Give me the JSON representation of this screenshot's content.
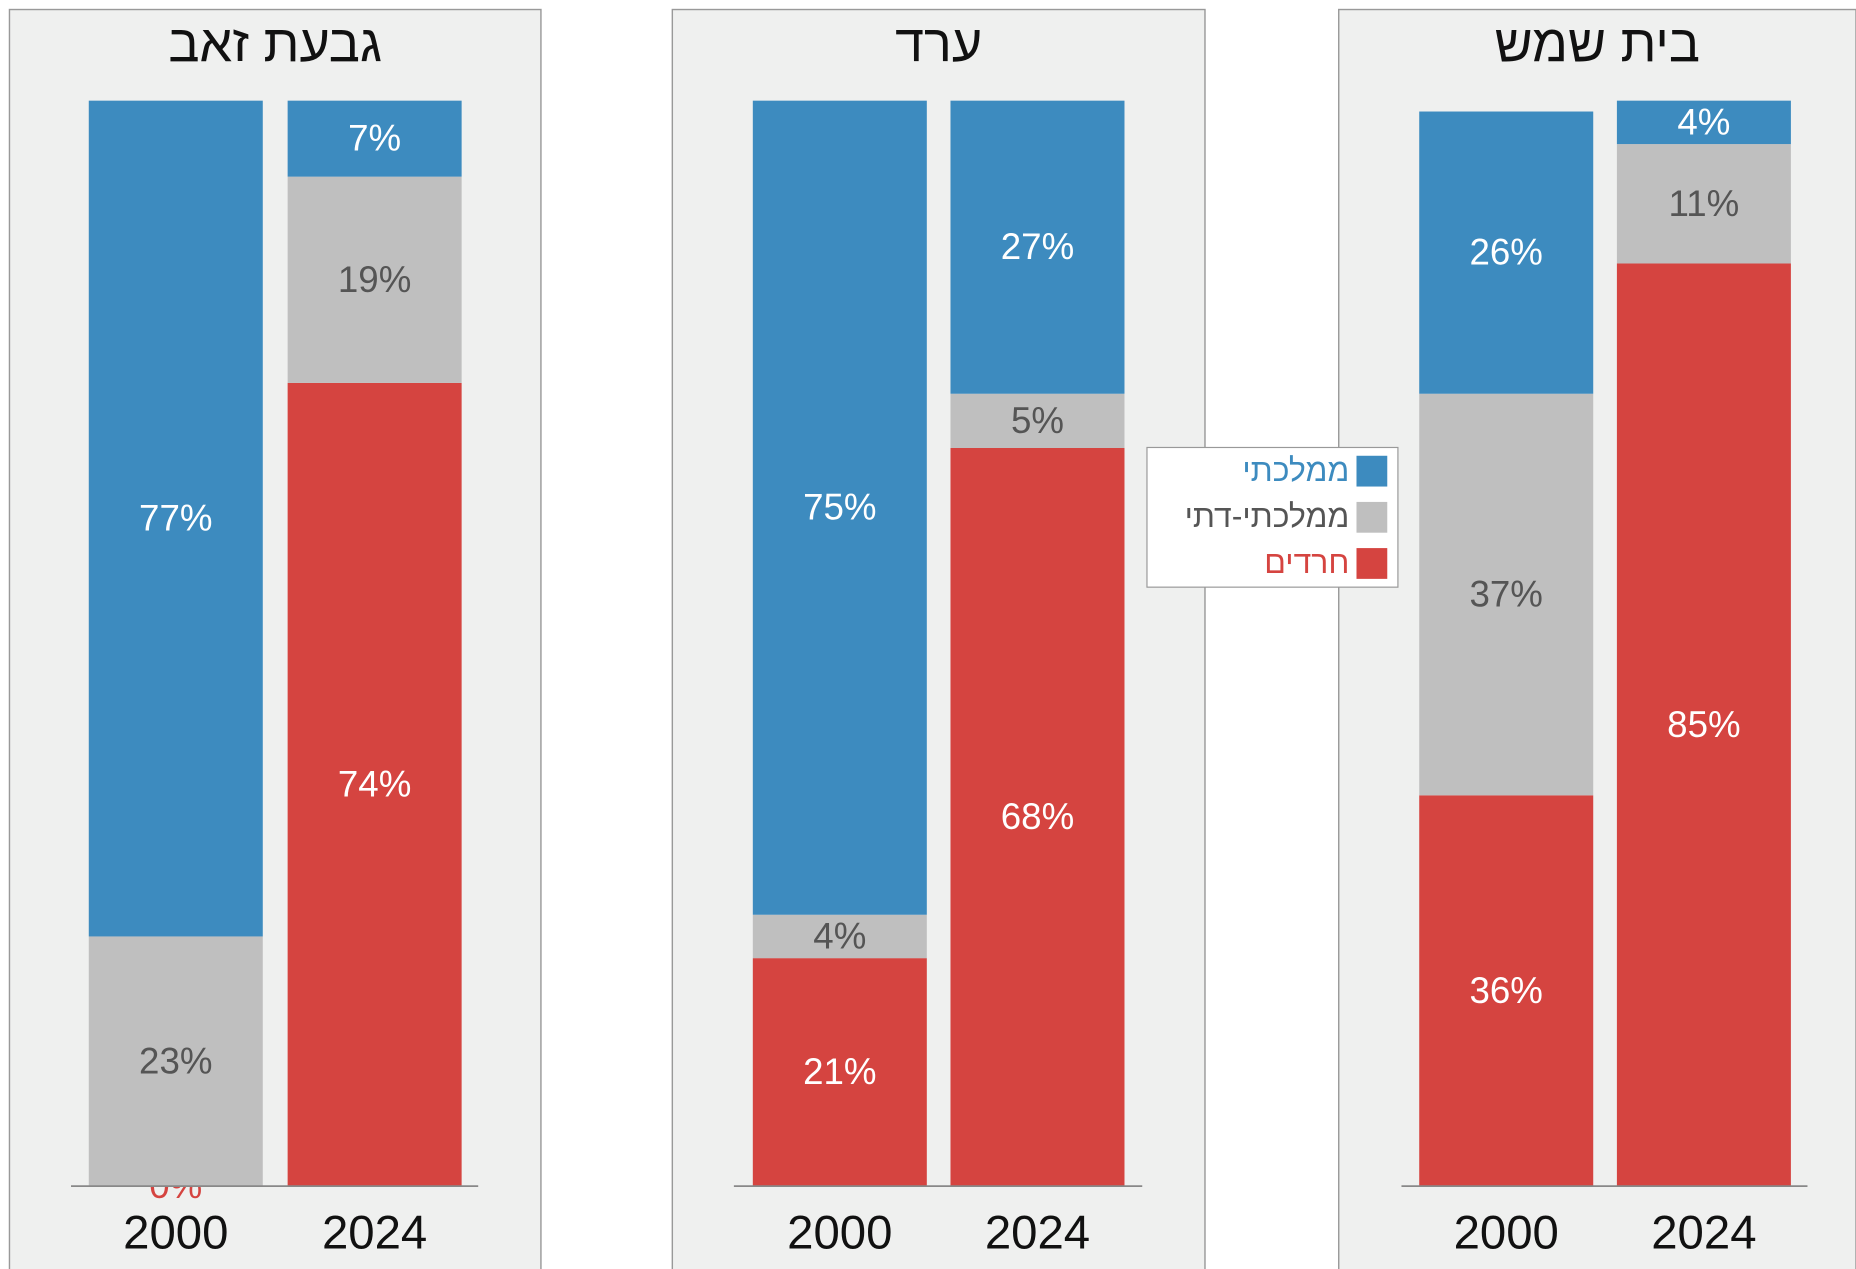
{
  "chart_data": {
    "type": "stacked_bar",
    "categories": [
      "2000",
      "2024"
    ],
    "ylim": [
      0,
      100
    ],
    "series": [
      {
        "name": "חרדים",
        "color": "#d54440"
      },
      {
        "name": "ממלכתי-דתי",
        "color": "#bfbfbf"
      },
      {
        "name": "ממלכתי",
        "color": "#3d8bbf"
      }
    ],
    "panels": [
      {
        "title": "גבעת זאב",
        "values": [
          [
            0,
            74
          ],
          [
            23,
            19
          ],
          [
            77,
            7
          ]
        ],
        "value_labels": [
          [
            "0%",
            "74%"
          ],
          [
            "23%",
            "19%"
          ],
          [
            "77%",
            "7%"
          ]
        ]
      },
      {
        "title": "ערד",
        "values": [
          [
            21,
            68
          ],
          [
            4,
            5
          ],
          [
            75,
            27
          ]
        ],
        "value_labels": [
          [
            "21%",
            "68%"
          ],
          [
            "4%",
            "5%"
          ],
          [
            "75%",
            "27%"
          ]
        ]
      },
      {
        "title": "בית שמש",
        "values": [
          [
            36,
            85
          ],
          [
            37,
            11
          ],
          [
            26,
            4
          ]
        ],
        "value_labels": [
          [
            "36%",
            "85%"
          ],
          [
            "37%",
            "11%"
          ],
          [
            "26%",
            "4%"
          ]
        ]
      }
    ]
  }
}
